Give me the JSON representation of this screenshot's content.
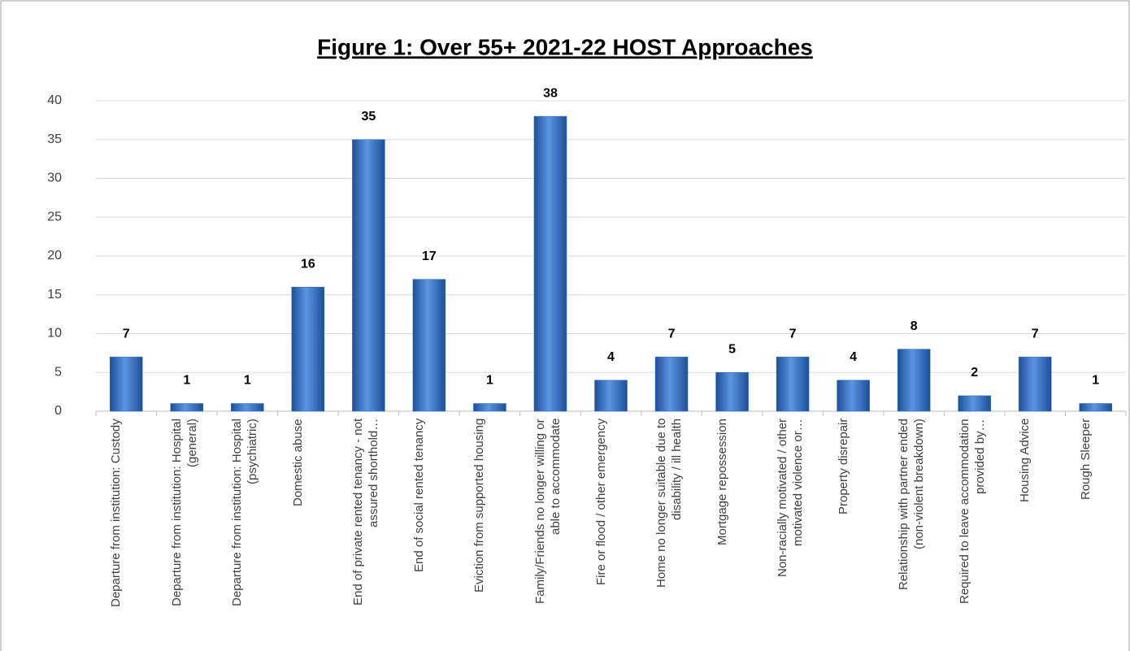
{
  "chart_data": {
    "type": "bar",
    "title": "Figure 1: Over 55+ 2021-22 HOST Approaches",
    "categories": [
      "Departure from institution: Custody",
      "Departure from institution: Hospital (general)",
      "Departure from institution: Hospital (psychiatric)",
      "Domestic abuse",
      "End of private rented tenancy - not assured shorthold…",
      "End of social rented tenancy",
      "Eviction from supported housing",
      "Family/Friends no longer willing or able to accommodate",
      "Fire or flood / other emergency",
      "Home no longer suitable due to disability / ill health",
      "Mortgage repossession",
      "Non-racially motivated / other motivated violence or…",
      "Property disrepair",
      "Relationship with partner ended (non-violent breakdown)",
      "Required to leave accommodation provided by…",
      "Housing Advice",
      "Rough Sleeper"
    ],
    "values": [
      7,
      1,
      1,
      16,
      35,
      17,
      1,
      38,
      4,
      7,
      5,
      7,
      4,
      8,
      2,
      7,
      1
    ],
    "color": "#2e6bc4",
    "ylim": [
      0,
      40
    ],
    "yticks": [
      0,
      5,
      10,
      15,
      20,
      25,
      30,
      35,
      40
    ],
    "grid": true
  }
}
